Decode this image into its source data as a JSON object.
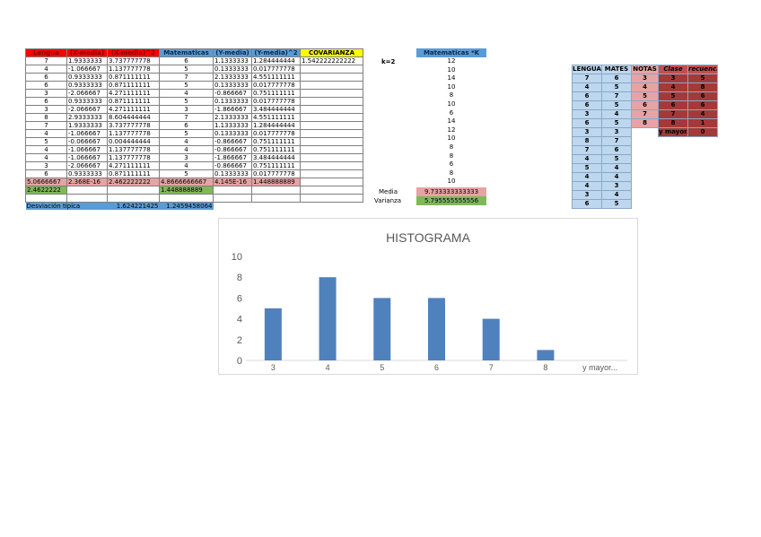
{
  "main_table": {
    "headers": [
      "Lengua",
      "(X-media)",
      "(X-media)^2",
      "Matematicas",
      "(Y-media)",
      "(Y-media)^2",
      "COVARIANZA"
    ],
    "covarianza_value": "1.542222222222",
    "rows": [
      [
        "7",
        "1.9333333",
        "3.737777778",
        "6",
        "1.1333333",
        "1.284444444"
      ],
      [
        "4",
        "-1.066667",
        "1.137777778",
        "5",
        "0.1333333",
        "0.017777778"
      ],
      [
        "6",
        "0.9333333",
        "0.871111111",
        "7",
        "2.1333333",
        "4.551111111"
      ],
      [
        "6",
        "0.9333333",
        "0.871111111",
        "5",
        "0.1333333",
        "0.017777778"
      ],
      [
        "3",
        "-2.066667",
        "4.271111111",
        "4",
        "-0.866667",
        "0.751111111"
      ],
      [
        "6",
        "0.9333333",
        "0.871111111",
        "5",
        "0.1333333",
        "0.017777778"
      ],
      [
        "3",
        "-2.066667",
        "4.271111111",
        "3",
        "-1.866667",
        "3.484444444"
      ],
      [
        "8",
        "2.9333333",
        "8.604444444",
        "7",
        "2.1333333",
        "4.551111111"
      ],
      [
        "7",
        "1.9333333",
        "3.737777778",
        "6",
        "1.1333333",
        "1.284444444"
      ],
      [
        "4",
        "-1.066667",
        "1.137777778",
        "5",
        "0.1333333",
        "0.017777778"
      ],
      [
        "5",
        "-0.066667",
        "0.004444444",
        "4",
        "-0.866667",
        "0.751111111"
      ],
      [
        "4",
        "-1.066667",
        "1.137777778",
        "4",
        "-0.866667",
        "0.751111111"
      ],
      [
        "4",
        "-1.066667",
        "1.137777778",
        "3",
        "-1.866667",
        "3.484444444"
      ],
      [
        "3",
        "-2.066667",
        "4.271111111",
        "4",
        "-0.866667",
        "0.751111111"
      ],
      [
        "6",
        "0.9333333",
        "0.871111111",
        "5",
        "0.1333333",
        "0.017777778"
      ]
    ],
    "totals_row": [
      "5.0666667",
      "2.368E-16",
      "2.462222222",
      "4.8666666667",
      "4.145E-16",
      "1.448888889"
    ],
    "varianza_row": [
      "2.4622222",
      "",
      "",
      "1.448888889",
      "",
      ""
    ],
    "desviacion_label": "Desviación típica",
    "desviacion_x": "1.624221425",
    "desviacion_y": "1.2459458064"
  },
  "k_label": "k=2",
  "k_table": {
    "header": "Matematicas *K",
    "values": [
      "12",
      "10",
      "14",
      "10",
      "8",
      "10",
      "6",
      "14",
      "12",
      "10",
      "8",
      "8",
      "6",
      "8",
      "10"
    ],
    "media_label": "Media",
    "media_value": "9.733333333333",
    "varianza_label": "Varianza",
    "varianza_value": "5.795555555556"
  },
  "freq_table": {
    "headers": [
      "LENGUA",
      "MATES",
      "NOTAS",
      "Clase",
      "recuencia"
    ],
    "rows": [
      [
        "7",
        "6",
        "3",
        "3",
        "5"
      ],
      [
        "4",
        "5",
        "4",
        "4",
        "8"
      ],
      [
        "6",
        "7",
        "5",
        "5",
        "6"
      ],
      [
        "6",
        "5",
        "6",
        "6",
        "6"
      ],
      [
        "3",
        "4",
        "7",
        "7",
        "4"
      ],
      [
        "6",
        "5",
        "8",
        "8",
        "1"
      ],
      [
        "3",
        "3",
        "",
        "y mayor...",
        "0"
      ],
      [
        "8",
        "7",
        "",
        "",
        ""
      ],
      [
        "7",
        "6",
        "",
        "",
        ""
      ],
      [
        "4",
        "5",
        "",
        "",
        ""
      ],
      [
        "5",
        "4",
        "",
        "",
        ""
      ],
      [
        "4",
        "4",
        "",
        "",
        ""
      ],
      [
        "4",
        "3",
        "",
        "",
        ""
      ],
      [
        "3",
        "4",
        "",
        "",
        ""
      ],
      [
        "6",
        "5",
        "",
        "",
        ""
      ]
    ]
  },
  "colors": {
    "bar": "#4f81bd",
    "header_red": "#ff0000",
    "header_blue": "#5b9bd5",
    "header_yellow": "#ffff00"
  },
  "chart_data": {
    "type": "bar",
    "title": "HISTOGRAMA",
    "categories": [
      "3",
      "4",
      "5",
      "6",
      "7",
      "8",
      "y mayor..."
    ],
    "values": [
      5,
      8,
      6,
      6,
      4,
      1,
      0
    ],
    "ylim": [
      0,
      10
    ],
    "yticks": [
      "0",
      "2",
      "4",
      "6",
      "8",
      "10"
    ],
    "xlabel": "",
    "ylabel": "",
    "grid": false
  }
}
